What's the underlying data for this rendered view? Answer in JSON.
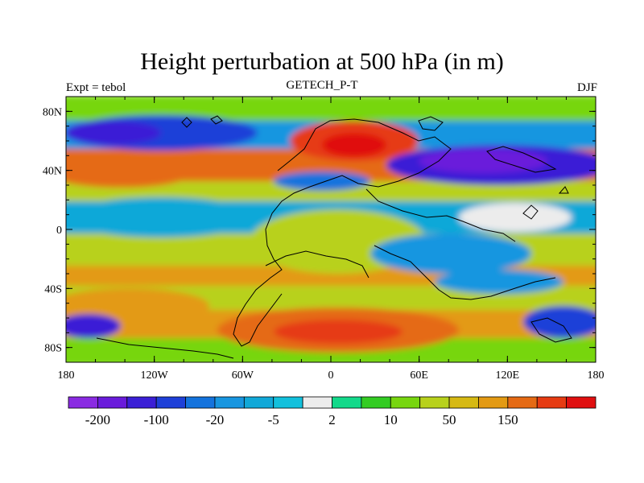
{
  "chart_data": {
    "type": "heatmap",
    "title": "Height perturbation at 500 hPa (in m)",
    "subtitle_left": "Expt = tebol",
    "subtitle_center": "GETECH_P-T",
    "subtitle_right": "DJF",
    "x_ticks": [
      "180",
      "120W",
      "60W",
      "0",
      "60E",
      "120E",
      "180"
    ],
    "y_ticks": [
      "80N",
      "40N",
      "0",
      "40S",
      "80S"
    ],
    "xlim": [
      -180,
      180
    ],
    "ylim": [
      -90,
      90
    ],
    "x_tick_values": [
      -180,
      -120,
      -60,
      0,
      60,
      120,
      180
    ],
    "y_tick_values": [
      80,
      40,
      0,
      -40,
      -80
    ],
    "colorbar": {
      "levels": [
        -200,
        -150,
        -100,
        -50,
        -20,
        -10,
        -5,
        -2,
        2,
        5,
        10,
        20,
        50,
        100,
        150,
        200
      ],
      "labels": [
        "-200",
        "-100",
        "-20",
        "-5",
        "2",
        "10",
        "50",
        "150"
      ],
      "colors": [
        "#8a2be2",
        "#6a1bdb",
        "#3b1fd6",
        "#1e40d8",
        "#1473dd",
        "#1896e0",
        "#11a8d8",
        "#12c0dc",
        "#ececec",
        "#13d98a",
        "#33cc22",
        "#77d60f",
        "#b8d11c",
        "#d6b913",
        "#e39a13",
        "#e56a14",
        "#e63b12",
        "#e00f10"
      ]
    }
  }
}
